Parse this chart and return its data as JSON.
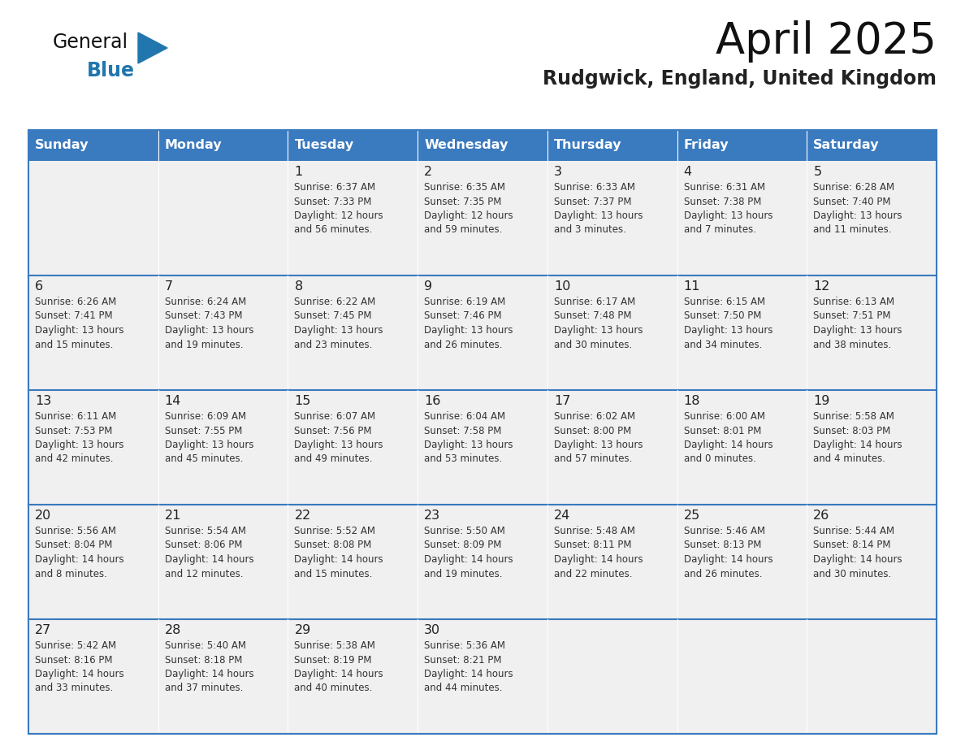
{
  "title": "April 2025",
  "subtitle": "Rudgwick, England, United Kingdom",
  "days_of_week": [
    "Sunday",
    "Monday",
    "Tuesday",
    "Wednesday",
    "Thursday",
    "Friday",
    "Saturday"
  ],
  "header_bg": "#3a7abf",
  "header_text": "#FFFFFF",
  "cell_bg": "#f0f0f0",
  "cell_bg_empty": "#f0f0f0",
  "border_color": "#3a7abf",
  "row_line_color": "#3a7abf",
  "day_num_color": "#222222",
  "text_color": "#333333",
  "title_color": "#111111",
  "subtitle_color": "#222222",
  "logo_general_color": "#111111",
  "logo_blue_color": "#2176AE",
  "triangle_color": "#2176AE",
  "weeks": [
    [
      {
        "day": null,
        "info": ""
      },
      {
        "day": null,
        "info": ""
      },
      {
        "day": 1,
        "info": "Sunrise: 6:37 AM\nSunset: 7:33 PM\nDaylight: 12 hours\nand 56 minutes."
      },
      {
        "day": 2,
        "info": "Sunrise: 6:35 AM\nSunset: 7:35 PM\nDaylight: 12 hours\nand 59 minutes."
      },
      {
        "day": 3,
        "info": "Sunrise: 6:33 AM\nSunset: 7:37 PM\nDaylight: 13 hours\nand 3 minutes."
      },
      {
        "day": 4,
        "info": "Sunrise: 6:31 AM\nSunset: 7:38 PM\nDaylight: 13 hours\nand 7 minutes."
      },
      {
        "day": 5,
        "info": "Sunrise: 6:28 AM\nSunset: 7:40 PM\nDaylight: 13 hours\nand 11 minutes."
      }
    ],
    [
      {
        "day": 6,
        "info": "Sunrise: 6:26 AM\nSunset: 7:41 PM\nDaylight: 13 hours\nand 15 minutes."
      },
      {
        "day": 7,
        "info": "Sunrise: 6:24 AM\nSunset: 7:43 PM\nDaylight: 13 hours\nand 19 minutes."
      },
      {
        "day": 8,
        "info": "Sunrise: 6:22 AM\nSunset: 7:45 PM\nDaylight: 13 hours\nand 23 minutes."
      },
      {
        "day": 9,
        "info": "Sunrise: 6:19 AM\nSunset: 7:46 PM\nDaylight: 13 hours\nand 26 minutes."
      },
      {
        "day": 10,
        "info": "Sunrise: 6:17 AM\nSunset: 7:48 PM\nDaylight: 13 hours\nand 30 minutes."
      },
      {
        "day": 11,
        "info": "Sunrise: 6:15 AM\nSunset: 7:50 PM\nDaylight: 13 hours\nand 34 minutes."
      },
      {
        "day": 12,
        "info": "Sunrise: 6:13 AM\nSunset: 7:51 PM\nDaylight: 13 hours\nand 38 minutes."
      }
    ],
    [
      {
        "day": 13,
        "info": "Sunrise: 6:11 AM\nSunset: 7:53 PM\nDaylight: 13 hours\nand 42 minutes."
      },
      {
        "day": 14,
        "info": "Sunrise: 6:09 AM\nSunset: 7:55 PM\nDaylight: 13 hours\nand 45 minutes."
      },
      {
        "day": 15,
        "info": "Sunrise: 6:07 AM\nSunset: 7:56 PM\nDaylight: 13 hours\nand 49 minutes."
      },
      {
        "day": 16,
        "info": "Sunrise: 6:04 AM\nSunset: 7:58 PM\nDaylight: 13 hours\nand 53 minutes."
      },
      {
        "day": 17,
        "info": "Sunrise: 6:02 AM\nSunset: 8:00 PM\nDaylight: 13 hours\nand 57 minutes."
      },
      {
        "day": 18,
        "info": "Sunrise: 6:00 AM\nSunset: 8:01 PM\nDaylight: 14 hours\nand 0 minutes."
      },
      {
        "day": 19,
        "info": "Sunrise: 5:58 AM\nSunset: 8:03 PM\nDaylight: 14 hours\nand 4 minutes."
      }
    ],
    [
      {
        "day": 20,
        "info": "Sunrise: 5:56 AM\nSunset: 8:04 PM\nDaylight: 14 hours\nand 8 minutes."
      },
      {
        "day": 21,
        "info": "Sunrise: 5:54 AM\nSunset: 8:06 PM\nDaylight: 14 hours\nand 12 minutes."
      },
      {
        "day": 22,
        "info": "Sunrise: 5:52 AM\nSunset: 8:08 PM\nDaylight: 14 hours\nand 15 minutes."
      },
      {
        "day": 23,
        "info": "Sunrise: 5:50 AM\nSunset: 8:09 PM\nDaylight: 14 hours\nand 19 minutes."
      },
      {
        "day": 24,
        "info": "Sunrise: 5:48 AM\nSunset: 8:11 PM\nDaylight: 14 hours\nand 22 minutes."
      },
      {
        "day": 25,
        "info": "Sunrise: 5:46 AM\nSunset: 8:13 PM\nDaylight: 14 hours\nand 26 minutes."
      },
      {
        "day": 26,
        "info": "Sunrise: 5:44 AM\nSunset: 8:14 PM\nDaylight: 14 hours\nand 30 minutes."
      }
    ],
    [
      {
        "day": 27,
        "info": "Sunrise: 5:42 AM\nSunset: 8:16 PM\nDaylight: 14 hours\nand 33 minutes."
      },
      {
        "day": 28,
        "info": "Sunrise: 5:40 AM\nSunset: 8:18 PM\nDaylight: 14 hours\nand 37 minutes."
      },
      {
        "day": 29,
        "info": "Sunrise: 5:38 AM\nSunset: 8:19 PM\nDaylight: 14 hours\nand 40 minutes."
      },
      {
        "day": 30,
        "info": "Sunrise: 5:36 AM\nSunset: 8:21 PM\nDaylight: 14 hours\nand 44 minutes."
      },
      {
        "day": null,
        "info": ""
      },
      {
        "day": null,
        "info": ""
      },
      {
        "day": null,
        "info": ""
      }
    ]
  ]
}
